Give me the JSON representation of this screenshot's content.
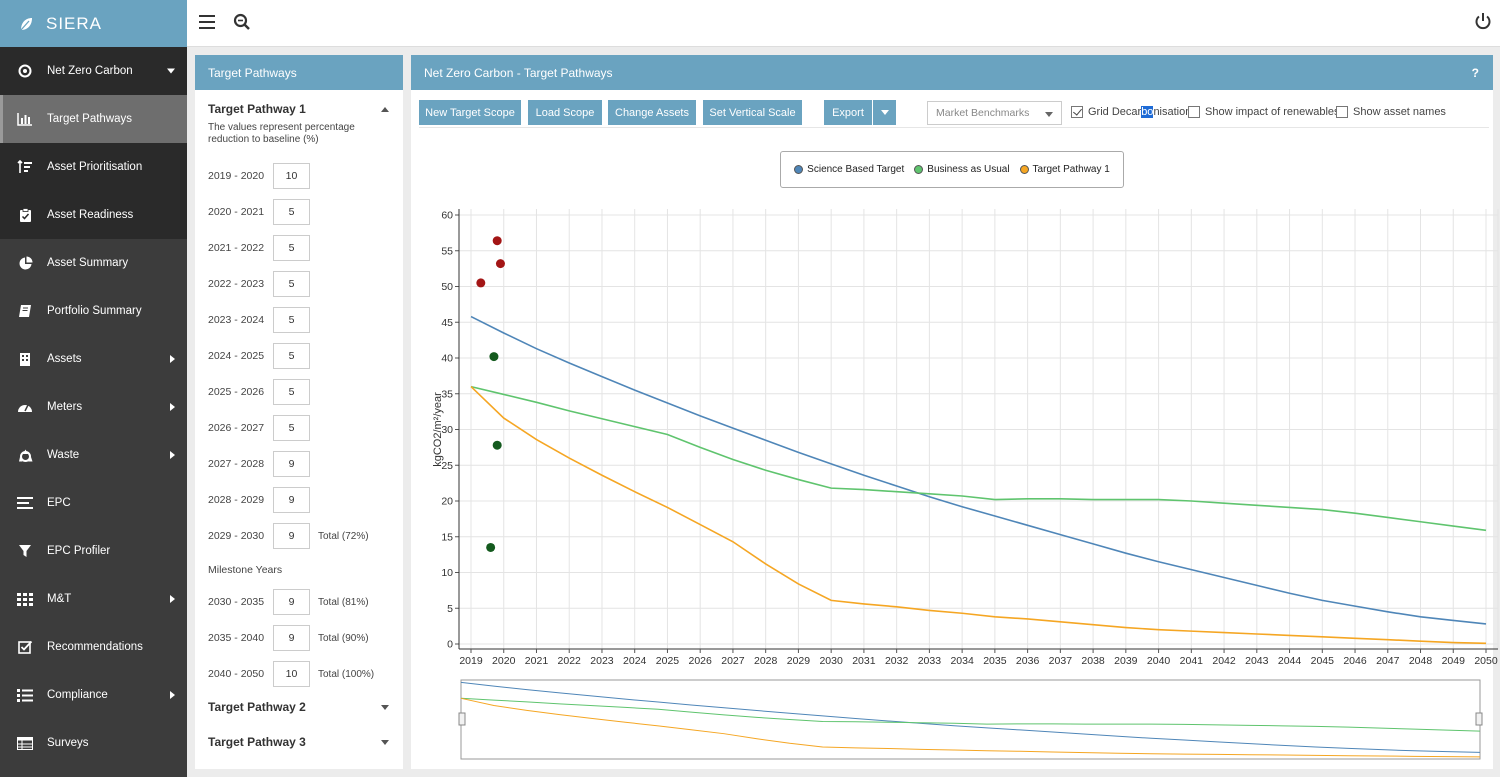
{
  "app": {
    "brand": "SIERA"
  },
  "sidebar": {
    "items": [
      {
        "label": "Net Zero Carbon",
        "icon": "target-icon",
        "arrow": "down"
      },
      {
        "label": "Target Pathways",
        "icon": "bar-chart-icon",
        "arrow": ""
      },
      {
        "label": "Asset Prioritisation",
        "icon": "sort-icon",
        "arrow": ""
      },
      {
        "label": "Asset Readiness",
        "icon": "clipboard-check-icon",
        "arrow": ""
      },
      {
        "label": "Asset Summary",
        "icon": "pie-chart-icon",
        "arrow": ""
      },
      {
        "label": "Portfolio Summary",
        "icon": "book-icon",
        "arrow": ""
      },
      {
        "label": "Assets",
        "icon": "building-icon",
        "arrow": "right"
      },
      {
        "label": "Meters",
        "icon": "gauge-icon",
        "arrow": "right"
      },
      {
        "label": "Waste",
        "icon": "recycle-icon",
        "arrow": "right"
      },
      {
        "label": "EPC",
        "icon": "lines-icon",
        "arrow": ""
      },
      {
        "label": "EPC Profiler",
        "icon": "filter-icon",
        "arrow": ""
      },
      {
        "label": "M&T",
        "icon": "grid-icon",
        "arrow": "right"
      },
      {
        "label": "Recommendations",
        "icon": "checkbox-icon",
        "arrow": ""
      },
      {
        "label": "Compliance",
        "icon": "list-icon",
        "arrow": "right"
      },
      {
        "label": "Surveys",
        "icon": "table-icon",
        "arrow": ""
      }
    ]
  },
  "left_panel": {
    "title": "Target Pathways",
    "pathway1": "Target Pathway 1",
    "note": "The values represent percentage reduction to baseline (%)",
    "rows": [
      {
        "label": "2019 - 2020",
        "value": "10",
        "total": ""
      },
      {
        "label": "2020 - 2021",
        "value": "5",
        "total": ""
      },
      {
        "label": "2021 - 2022",
        "value": "5",
        "total": ""
      },
      {
        "label": "2022 - 2023",
        "value": "5",
        "total": ""
      },
      {
        "label": "2023 - 2024",
        "value": "5",
        "total": ""
      },
      {
        "label": "2024 - 2025",
        "value": "5",
        "total": ""
      },
      {
        "label": "2025 - 2026",
        "value": "5",
        "total": ""
      },
      {
        "label": "2026 - 2027",
        "value": "5",
        "total": ""
      },
      {
        "label": "2027 - 2028",
        "value": "9",
        "total": ""
      },
      {
        "label": "2028 - 2029",
        "value": "9",
        "total": ""
      },
      {
        "label": "2029 - 2030",
        "value": "9",
        "total": "Total (72%)"
      }
    ],
    "milestone_label": "Milestone Years",
    "milestones": [
      {
        "label": "2030 - 2035",
        "value": "9",
        "total": "Total (81%)"
      },
      {
        "label": "2035 - 2040",
        "value": "9",
        "total": "Total (90%)"
      },
      {
        "label": "2040 - 2050",
        "value": "10",
        "total": "Total (100%)"
      }
    ],
    "pathway2": "Target Pathway 2",
    "pathway3": "Target Pathway 3"
  },
  "main_panel": {
    "title": "Net Zero Carbon - Target Pathways",
    "help": "?",
    "buttons": {
      "new_scope": "New Target Scope",
      "load_scope": "Load Scope",
      "change_assets": "Change Assets",
      "vertical_scale": "Set Vertical Scale",
      "export": "Export"
    },
    "benchmark_select": "Market Benchmarks",
    "checkboxes": {
      "grid_pre": "Grid Decar",
      "grid_sel": "bo",
      "grid_post": "nisation",
      "renewables": "Show impact of renewables",
      "asset_names": "Show asset names"
    }
  },
  "chart_data": {
    "type": "line",
    "ylabel": "kgCO2/m²/year",
    "xlabel": "",
    "ylim": [
      0,
      60
    ],
    "yticks": [
      0,
      5,
      10,
      15,
      20,
      25,
      30,
      35,
      40,
      45,
      50,
      55,
      60
    ],
    "x": [
      2019,
      2020,
      2021,
      2022,
      2023,
      2024,
      2025,
      2026,
      2027,
      2028,
      2029,
      2030,
      2031,
      2032,
      2033,
      2034,
      2035,
      2036,
      2037,
      2038,
      2039,
      2040,
      2041,
      2042,
      2043,
      2044,
      2045,
      2046,
      2047,
      2048,
      2049,
      2050
    ],
    "series": [
      {
        "name": "Science Based Target",
        "color": "#4f86b8",
        "values": [
          45.8,
          43.5,
          41.3,
          39.3,
          37.4,
          35.5,
          33.7,
          31.9,
          30.2,
          28.5,
          26.8,
          25.2,
          23.6,
          22.1,
          20.6,
          19.2,
          17.9,
          16.6,
          15.3,
          14.0,
          12.7,
          11.5,
          10.4,
          9.3,
          8.2,
          7.1,
          6.1,
          5.3,
          4.5,
          3.8,
          3.3,
          2.8
        ]
      },
      {
        "name": "Business as Usual",
        "color": "#5fc46e",
        "values": [
          36.0,
          34.9,
          33.8,
          32.6,
          31.5,
          30.4,
          29.3,
          27.5,
          25.8,
          24.3,
          23.0,
          21.8,
          21.6,
          21.3,
          21.0,
          20.7,
          20.2,
          20.3,
          20.3,
          20.2,
          20.2,
          20.2,
          20.0,
          19.7,
          19.4,
          19.1,
          18.8,
          18.3,
          17.7,
          17.1,
          16.5,
          15.9
        ]
      },
      {
        "name": "Target Pathway 1",
        "color": "#f5a623",
        "values": [
          36.0,
          31.6,
          28.6,
          26.0,
          23.6,
          21.3,
          19.1,
          16.7,
          14.3,
          11.2,
          8.4,
          6.1,
          5.6,
          5.2,
          4.7,
          4.3,
          3.8,
          3.5,
          3.1,
          2.7,
          2.3,
          2.0,
          1.8,
          1.6,
          1.4,
          1.2,
          1.0,
          0.8,
          0.6,
          0.4,
          0.2,
          0.1
        ]
      }
    ],
    "scatter": [
      {
        "x": 2019.3,
        "y": 50.5,
        "color": "#a31515"
      },
      {
        "x": 2019.8,
        "y": 56.4,
        "color": "#a31515"
      },
      {
        "x": 2019.9,
        "y": 53.2,
        "color": "#a31515"
      },
      {
        "x": 2019.7,
        "y": 40.2,
        "color": "#145a1e"
      },
      {
        "x": 2019.8,
        "y": 27.8,
        "color": "#145a1e"
      },
      {
        "x": 2019.6,
        "y": 13.5,
        "color": "#145a1e"
      }
    ],
    "grid": true,
    "legend": "top-center"
  }
}
